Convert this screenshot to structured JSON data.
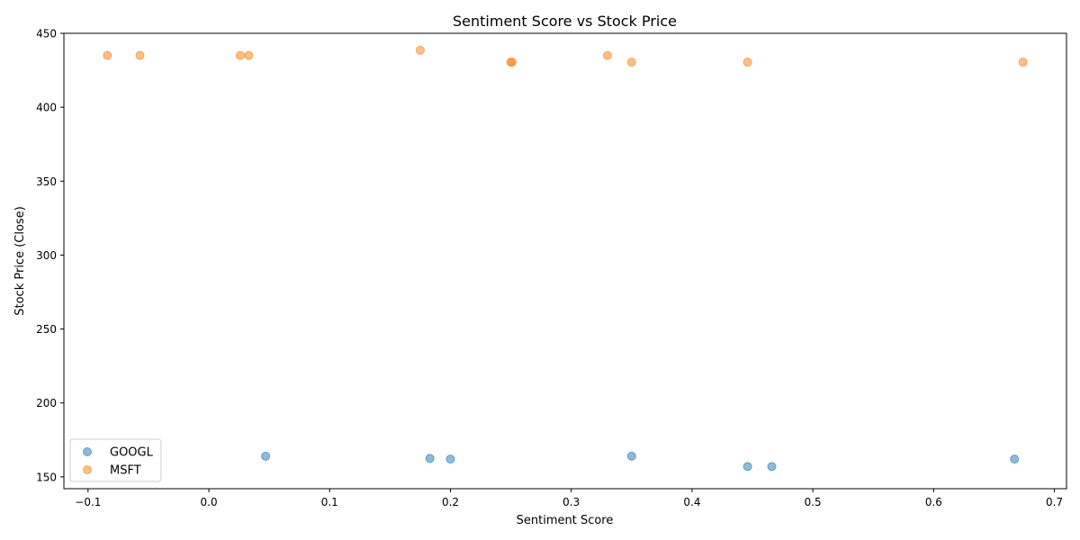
{
  "chart_data": {
    "type": "scatter",
    "title": "Sentiment Score vs Stock Price",
    "xlabel": "Sentiment Score",
    "ylabel": "Stock Price (Close)",
    "xlim": [
      -0.12,
      0.71
    ],
    "ylim": [
      142,
      450
    ],
    "xticks": [
      -0.1,
      0.0,
      0.1,
      0.2,
      0.3,
      0.4,
      0.5,
      0.6,
      0.7
    ],
    "xtick_labels": [
      "−0.1",
      "0.0",
      "0.1",
      "0.2",
      "0.3",
      "0.4",
      "0.5",
      "0.6",
      "0.7"
    ],
    "yticks": [
      150,
      200,
      250,
      300,
      350,
      400,
      450
    ],
    "ytick_labels": [
      "150",
      "200",
      "250",
      "300",
      "350",
      "400",
      "450"
    ],
    "grid": false,
    "legend": "lower-left",
    "series": [
      {
        "name": "GOOGL",
        "color": "#1f77b4",
        "points": [
          {
            "x": 0.047,
            "y": 164
          },
          {
            "x": 0.183,
            "y": 162.5
          },
          {
            "x": 0.2,
            "y": 162
          },
          {
            "x": 0.35,
            "y": 164
          },
          {
            "x": 0.446,
            "y": 157
          },
          {
            "x": 0.466,
            "y": 157
          },
          {
            "x": 0.667,
            "y": 162
          }
        ]
      },
      {
        "name": "MSFT",
        "color": "#ff7f0e",
        "points": [
          {
            "x": -0.084,
            "y": 435
          },
          {
            "x": -0.057,
            "y": 435
          },
          {
            "x": 0.026,
            "y": 435
          },
          {
            "x": 0.033,
            "y": 435
          },
          {
            "x": 0.175,
            "y": 438.5
          },
          {
            "x": 0.25,
            "y": 430.5
          },
          {
            "x": 0.251,
            "y": 430.5
          },
          {
            "x": 0.33,
            "y": 435
          },
          {
            "x": 0.35,
            "y": 430.5
          },
          {
            "x": 0.446,
            "y": 430.5
          },
          {
            "x": 0.674,
            "y": 430.5
          }
        ]
      }
    ]
  }
}
